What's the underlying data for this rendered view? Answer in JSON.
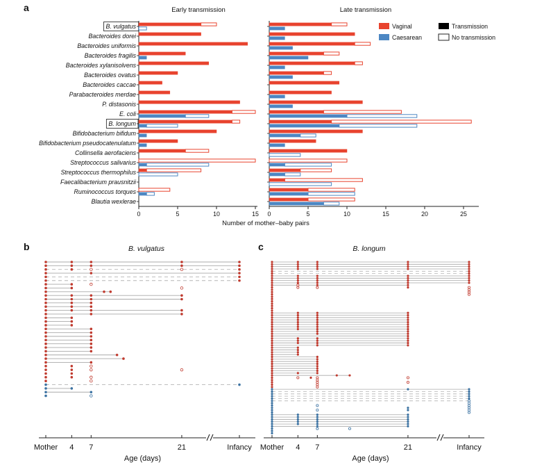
{
  "colors": {
    "vaginal": "#e8432e",
    "caesarean": "#4d87c3",
    "transmission": "#000000",
    "no_transmission_border": "#222222",
    "dot_red": "#c03a2e",
    "dot_blue": "#3b72a2",
    "line_gray": "#a9a9a9",
    "dash_gray": "#b5b5b5",
    "axis": "#222222"
  },
  "chart_data": [
    {
      "type": "bar",
      "panel": "a",
      "letter": "a",
      "orientation": "horizontal",
      "title_early": "Early transmission",
      "title_late": "Late transmission",
      "xlabel": "Number of mother–baby pairs",
      "xlim_early": [
        0,
        15
      ],
      "xlim_late": [
        0,
        25
      ],
      "xticks_early": [
        0,
        5,
        10,
        15
      ],
      "xticks_late": [
        0,
        5,
        10,
        15,
        20,
        25
      ],
      "legend": [
        {
          "label": "Vaginal",
          "swatch": "vaginal"
        },
        {
          "label": "Caesarean",
          "swatch": "caesarean"
        },
        {
          "label": "Transmission",
          "swatch": "transmission"
        },
        {
          "label": "No transmission",
          "swatch": "no_transmission"
        }
      ],
      "value_columns": [
        "vaginal_transmission",
        "vaginal_total",
        "caesarean_transmission",
        "caesarean_total"
      ],
      "species": [
        {
          "name": "B. vulgatus",
          "boxed": true,
          "early": [
            8,
            10,
            0,
            1
          ],
          "late": [
            8,
            10,
            2,
            2
          ]
        },
        {
          "name": "Bacteroides dorei",
          "early": [
            8,
            8,
            0,
            0
          ],
          "late": [
            11,
            11,
            2,
            2
          ]
        },
        {
          "name": "Bacteroides uniformis",
          "early": [
            14,
            14,
            0,
            0
          ],
          "late": [
            11,
            13,
            3,
            3
          ]
        },
        {
          "name": "Bacteroides fragilis",
          "early": [
            6,
            6,
            1,
            1
          ],
          "late": [
            7,
            9,
            5,
            5
          ]
        },
        {
          "name": "Bacteroides xylanisolvens",
          "early": [
            9,
            9,
            0,
            0
          ],
          "late": [
            11,
            12,
            2,
            2
          ]
        },
        {
          "name": "Bacteroides ovatus",
          "early": [
            5,
            5,
            0,
            0
          ],
          "late": [
            7,
            8,
            3,
            3
          ]
        },
        {
          "name": "Bacteroides caccae",
          "early": [
            3,
            3,
            0,
            0
          ],
          "late": [
            9,
            9,
            0,
            0
          ]
        },
        {
          "name": "Parabacteroides merdae",
          "early": [
            4,
            4,
            0,
            0
          ],
          "late": [
            8,
            8,
            2,
            2
          ]
        },
        {
          "name": "P. distasonis",
          "early": [
            13,
            13,
            0,
            0
          ],
          "late": [
            12,
            12,
            3,
            3
          ]
        },
        {
          "name": "E. coli",
          "early": [
            12,
            15,
            6,
            9
          ],
          "late": [
            7,
            17,
            10,
            19
          ]
        },
        {
          "name": "B. longum",
          "boxed": true,
          "early": [
            12,
            13,
            1,
            5
          ],
          "late": [
            8,
            26,
            9,
            19
          ]
        },
        {
          "name": "Bifidobacterium bifidum",
          "early": [
            10,
            10,
            1,
            1
          ],
          "late": [
            12,
            12,
            4,
            6
          ]
        },
        {
          "name": "Bifidobacterium pseudocatenulatum",
          "early": [
            5,
            5,
            1,
            1
          ],
          "late": [
            6,
            6,
            2,
            2
          ]
        },
        {
          "name": "Collinsella aerofaciens",
          "early": [
            6,
            9,
            0,
            0
          ],
          "late": [
            10,
            10,
            0,
            4
          ]
        },
        {
          "name": "Streptococcus salivarius",
          "early": [
            0,
            15,
            1,
            9
          ],
          "late": [
            0,
            10,
            2,
            8
          ]
        },
        {
          "name": "Streptococcus thermophilus",
          "early": [
            1,
            8,
            0,
            5
          ],
          "late": [
            4,
            8,
            2,
            4
          ]
        },
        {
          "name": "Faecalibacterium prausnitzii",
          "early": [
            0,
            0,
            0,
            0
          ],
          "late": [
            2,
            12,
            0,
            8
          ]
        },
        {
          "name": "Ruminococcus torques",
          "early": [
            0,
            4,
            1,
            2
          ],
          "late": [
            5,
            11,
            5,
            11
          ]
        },
        {
          "name": "Blautia wexlerae",
          "early": [
            0,
            0,
            0,
            0
          ],
          "late": [
            5,
            11,
            7,
            9
          ]
        }
      ]
    },
    {
      "type": "scatter",
      "panel": "b",
      "letter": "b",
      "title": "B. vulgatus",
      "xlabel": "Age (days)",
      "xticks": [
        {
          "label": "Mother",
          "day": 0
        },
        {
          "label": "4",
          "day": 4
        },
        {
          "label": "7",
          "day": 7
        },
        {
          "label": "21",
          "day": 21
        },
        {
          "label": "Infancy",
          "day": "I"
        }
      ],
      "row_format": "color(r=vaginal,b=caesarean)|line(s=solid,d=dashed,n=none)|line end day (I=infancy)|dots at days (M=mother, I=infancy, suffix o=open circle)",
      "rows": [
        "r|s|I|M 4 7 21 I",
        "r|s|I|M 4 7 21 I",
        "r|d|I|M 4 7o 21o I",
        "r|s|I|M 7 I",
        "r|d|I|M I",
        "r|d|I|M I",
        "r|s|4|M 4 7o",
        "r|s|4|M 4 21o",
        "r|s|10|M 9 10",
        "r|s|21|M 4 7 21",
        "r|s|21|M 4 7 21",
        "r|s|7|M 4 7",
        "r|s|7|M 4 7",
        "r|s|21|M 4 7 21",
        "r|s|21|M 7 21",
        "r|s|4|M 4",
        "r|s|4|M 4",
        "r|s|4|M 4",
        "r|s|7|M 7",
        "r|s|7|M 7",
        "r|s|7|M 7",
        "r|s|7|M 7",
        "r|s|7|M 7",
        "r|s|7|M 7",
        "r|s|7|M 7",
        "r|s|11|M 11",
        "r|s|12|M 12",
        "r|s|7|M 7",
        "r|n|0|M 4 7o",
        "r|n|0|M 4 7o 21o",
        "r|n|0|M 4",
        "r|n|0|M 4 7o",
        "r|n|0|M 7o",
        "b|d|I|M I",
        "b|s|4|M 4",
        "b|s|7|M 7",
        "b|n|0|M 7o"
      ]
    },
    {
      "type": "scatter",
      "panel": "c",
      "letter": "c",
      "title": "B. longum",
      "xlabel": "Age (days)",
      "xticks": [
        {
          "label": "Mother",
          "day": 0
        },
        {
          "label": "4",
          "day": 4
        },
        {
          "label": "7",
          "day": 7
        },
        {
          "label": "21",
          "day": 21
        },
        {
          "label": "Infancy",
          "day": "I"
        }
      ],
      "row_format": "color(r=vaginal,b=caesarean)|line(s=solid,d=dashed,n=none)|line end day (I=infancy)|dots at days (M=mother, I=infancy, suffix o=open circle)",
      "rows": [
        "r|s|I|M 4 7 21 I",
        "r|s|I|M 4 7 21 I",
        "r|s|I|M 4 7 21 I",
        "r|s|I|M 4 7 21 I",
        "r|d|I|M I",
        "r|d|I|M I",
        "r|s|I|M 4 7 21 I",
        "r|s|I|M 4 7 21 I",
        "r|s|I|M 4 7 21 I",
        "r|s|I|M 4 7 21 I",
        "r|s|21|M 4o 7 21",
        "r|n|0|M 4o 7o 21 Io",
        "r|n|0|M Io",
        "r|n|0|M Io",
        "r|n|0|M Io",
        "r|n|0|M",
        "r|n|0|M",
        "r|n|0|M",
        "r|n|0|M",
        "r|n|0|M",
        "r|n|0|M",
        "r|n|0|M",
        "r|s|21|M 4 7 21",
        "r|s|21|M 4 7 21",
        "r|s|21|M 4 7 21",
        "r|s|21|M 4 7 21",
        "r|s|21|M 4 7 21",
        "r|s|21|M 4 7 21",
        "r|s|21|M 4 7 21",
        "r|s|21|M 4 7 21",
        "r|s|21|M 7 21",
        "r|s|21|M 7 21",
        "r|s|21|M 21",
        "r|s|21|M 4 7 21",
        "r|s|21|M 4 7 21",
        "r|s|21|M 4 7 21",
        "r|s|21|M 7 21",
        "r|s|4|M 4",
        "r|s|4|M 4",
        "r|s|4|M 4",
        "r|s|4|M 4",
        "r|s|7|M 7",
        "r|s|7|M 7",
        "r|s|7|M 7",
        "r|s|7|M 7",
        "r|s|7|M 7",
        "r|s|7|M 7",
        "r|s|7|M 7",
        "r|s|7|M 4 7",
        "r|s|12|M 10 12",
        "r|n|0|M 4o 6 7o 21o",
        "r|n|0|M 7o",
        "r|n|0|M 7o 21o",
        "r|n|0|M 7o",
        "r|n|0|M 7o",
        "b|s|I|M 21 I",
        "b|d|I|M I",
        "b|d|I|M I",
        "b|d|I|M I",
        "b|d|I|M I",
        "b|d|I|M Io",
        "b|n|0|M Io",
        "b|n|0|M 7o Io",
        "b|n|0|M 21 Io",
        "b|n|0|M 7o 21 Io",
        "b|n|0|M Io",
        "b|s|21|M 4 7 21",
        "b|s|21|M 4 7 21",
        "b|s|21|M 4 7 21",
        "b|s|21|M 4 7 21",
        "b|s|21|M 4 7 21",
        "b|s|21|M 7 21",
        "b|n|0|M 7o 12o",
        "b|n|0|M",
        "b|n|0|M"
      ]
    }
  ]
}
